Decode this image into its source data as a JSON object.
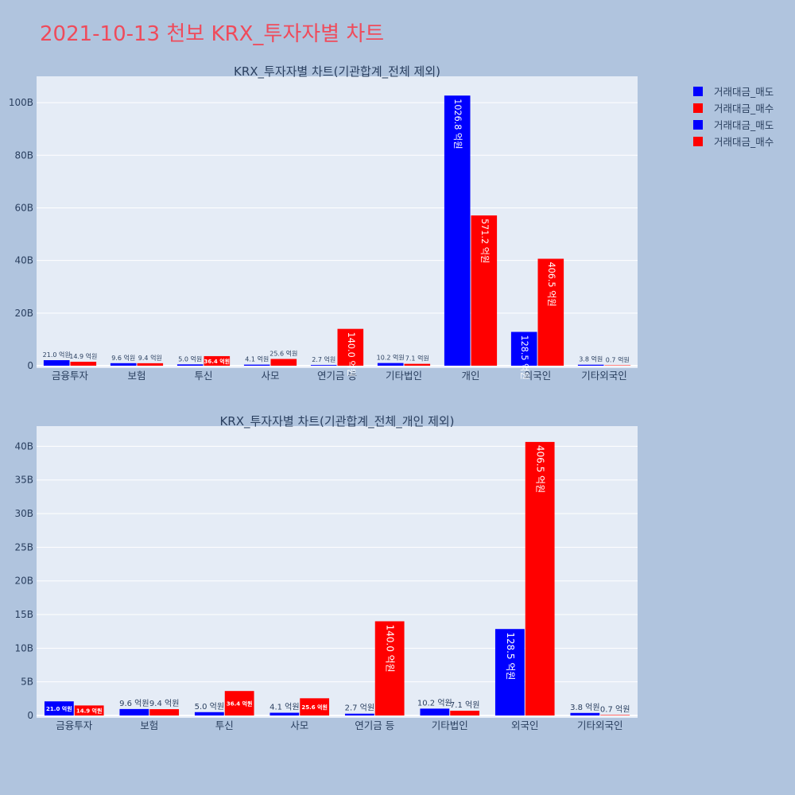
{
  "page_title": "2021-10-13 천보 KRX_투자자별 차트",
  "colors": {
    "sell": "#0000ff",
    "buy": "#ff0000",
    "plot_bg": "#e5ecf6",
    "page_bg": "#b0c4de"
  },
  "legend": [
    {
      "label": "거래대금_매도",
      "color": "#0000ff"
    },
    {
      "label": "거래대금_매수",
      "color": "#ff0000"
    },
    {
      "label": "거래대금_매도",
      "color": "#0000ff"
    },
    {
      "label": "거래대금_매수",
      "color": "#ff0000"
    }
  ],
  "chart_data": [
    {
      "type": "bar",
      "title": "KRX_투자자별 차트(기관합계_전체 제외)",
      "categories": [
        "금융투자",
        "보험",
        "투신",
        "사모",
        "연기금 등",
        "기타법인",
        "개인",
        "외국인",
        "기타외국인"
      ],
      "series": [
        {
          "name": "거래대금_매도",
          "values": [
            2.1,
            0.96,
            0.5,
            0.41,
            0.27,
            1.02,
            102.68,
            12.85,
            0.38
          ],
          "labels": [
            "21.0 억원",
            "9.6 억원",
            "5.0 억원",
            "4.1 억원",
            "2.7 억원",
            "10.2 억원",
            "1026.8 억원",
            "128.5 억원",
            "3.8 억원"
          ]
        },
        {
          "name": "거래대금_매수",
          "values": [
            1.49,
            0.94,
            3.64,
            2.56,
            14.0,
            0.71,
            57.12,
            40.65,
            0.07
          ],
          "labels": [
            "14.9 억원",
            "9.4 억원",
            "36.4 억원",
            "25.6 억원",
            "140.0 억원",
            "7.1 억원",
            "571.2 억원",
            "406.5 억원",
            "0.7 억원"
          ]
        }
      ],
      "yticks": [
        "0",
        "20B",
        "40B",
        "60B",
        "80B",
        "100B"
      ],
      "ytick_values": [
        0,
        20,
        40,
        60,
        80,
        100
      ],
      "ylim": [
        0,
        110
      ],
      "grid": true
    },
    {
      "type": "bar",
      "title": "KRX_투자자별 차트(기관합계_전체_개인 제외)",
      "categories": [
        "금융투자",
        "보험",
        "투신",
        "사모",
        "연기금 등",
        "기타법인",
        "외국인",
        "기타외국인"
      ],
      "series": [
        {
          "name": "거래대금_매도",
          "values": [
            2.1,
            0.96,
            0.5,
            0.41,
            0.27,
            1.02,
            12.85,
            0.38
          ],
          "labels": [
            "21.0 억원",
            "9.6 억원",
            "5.0 억원",
            "4.1 억원",
            "2.7 억원",
            "10.2 억원",
            "128.5 억원",
            "3.8 억원"
          ]
        },
        {
          "name": "거래대금_매수",
          "values": [
            1.49,
            0.94,
            3.64,
            2.56,
            14.0,
            0.71,
            40.65,
            0.07
          ],
          "labels": [
            "14.9 억원",
            "9.4 억원",
            "36.4 억원",
            "25.6 억원",
            "140.0 억원",
            "7.1 억원",
            "406.5 억원",
            "0.7 억원"
          ]
        }
      ],
      "yticks": [
        "0",
        "5B",
        "10B",
        "15B",
        "20B",
        "25B",
        "30B",
        "35B",
        "40B"
      ],
      "ytick_values": [
        0,
        5,
        10,
        15,
        20,
        25,
        30,
        35,
        40
      ],
      "ylim": [
        0,
        43
      ],
      "grid": true
    }
  ]
}
